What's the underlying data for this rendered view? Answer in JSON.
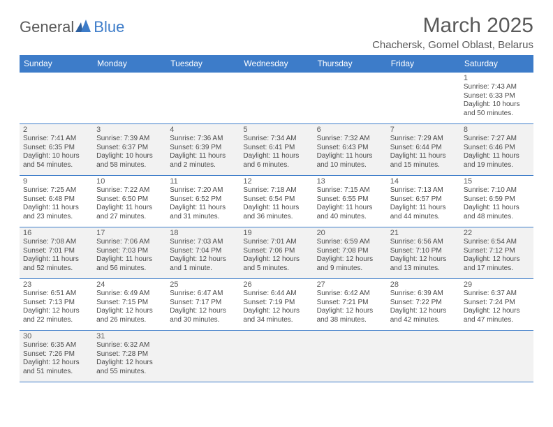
{
  "brand": {
    "part1": "General",
    "part2": "Blue"
  },
  "title": "March 2025",
  "location": "Chachersk, Gomel Oblast, Belarus",
  "colors": {
    "header_bg": "#3d7cc9",
    "header_fg": "#ffffff",
    "text": "#595959",
    "alt_row_bg": "#f2f2f2",
    "border": "#3d7cc9"
  },
  "weekdays": [
    "Sunday",
    "Monday",
    "Tuesday",
    "Wednesday",
    "Thursday",
    "Friday",
    "Saturday"
  ],
  "weeks": [
    [
      {
        "empty": true
      },
      {
        "empty": true
      },
      {
        "empty": true
      },
      {
        "empty": true
      },
      {
        "empty": true
      },
      {
        "empty": true
      },
      {
        "n": "1",
        "sr": "7:43 AM",
        "ss": "6:33 PM",
        "dl": "10 hours and 50 minutes."
      }
    ],
    [
      {
        "n": "2",
        "sr": "7:41 AM",
        "ss": "6:35 PM",
        "dl": "10 hours and 54 minutes."
      },
      {
        "n": "3",
        "sr": "7:39 AM",
        "ss": "6:37 PM",
        "dl": "10 hours and 58 minutes."
      },
      {
        "n": "4",
        "sr": "7:36 AM",
        "ss": "6:39 PM",
        "dl": "11 hours and 2 minutes."
      },
      {
        "n": "5",
        "sr": "7:34 AM",
        "ss": "6:41 PM",
        "dl": "11 hours and 6 minutes."
      },
      {
        "n": "6",
        "sr": "7:32 AM",
        "ss": "6:43 PM",
        "dl": "11 hours and 10 minutes."
      },
      {
        "n": "7",
        "sr": "7:29 AM",
        "ss": "6:44 PM",
        "dl": "11 hours and 15 minutes."
      },
      {
        "n": "8",
        "sr": "7:27 AM",
        "ss": "6:46 PM",
        "dl": "11 hours and 19 minutes."
      }
    ],
    [
      {
        "n": "9",
        "sr": "7:25 AM",
        "ss": "6:48 PM",
        "dl": "11 hours and 23 minutes."
      },
      {
        "n": "10",
        "sr": "7:22 AM",
        "ss": "6:50 PM",
        "dl": "11 hours and 27 minutes."
      },
      {
        "n": "11",
        "sr": "7:20 AM",
        "ss": "6:52 PM",
        "dl": "11 hours and 31 minutes."
      },
      {
        "n": "12",
        "sr": "7:18 AM",
        "ss": "6:54 PM",
        "dl": "11 hours and 36 minutes."
      },
      {
        "n": "13",
        "sr": "7:15 AM",
        "ss": "6:55 PM",
        "dl": "11 hours and 40 minutes."
      },
      {
        "n": "14",
        "sr": "7:13 AM",
        "ss": "6:57 PM",
        "dl": "11 hours and 44 minutes."
      },
      {
        "n": "15",
        "sr": "7:10 AM",
        "ss": "6:59 PM",
        "dl": "11 hours and 48 minutes."
      }
    ],
    [
      {
        "n": "16",
        "sr": "7:08 AM",
        "ss": "7:01 PM",
        "dl": "11 hours and 52 minutes."
      },
      {
        "n": "17",
        "sr": "7:06 AM",
        "ss": "7:03 PM",
        "dl": "11 hours and 56 minutes."
      },
      {
        "n": "18",
        "sr": "7:03 AM",
        "ss": "7:04 PM",
        "dl": "12 hours and 1 minute."
      },
      {
        "n": "19",
        "sr": "7:01 AM",
        "ss": "7:06 PM",
        "dl": "12 hours and 5 minutes."
      },
      {
        "n": "20",
        "sr": "6:59 AM",
        "ss": "7:08 PM",
        "dl": "12 hours and 9 minutes."
      },
      {
        "n": "21",
        "sr": "6:56 AM",
        "ss": "7:10 PM",
        "dl": "12 hours and 13 minutes."
      },
      {
        "n": "22",
        "sr": "6:54 AM",
        "ss": "7:12 PM",
        "dl": "12 hours and 17 minutes."
      }
    ],
    [
      {
        "n": "23",
        "sr": "6:51 AM",
        "ss": "7:13 PM",
        "dl": "12 hours and 22 minutes."
      },
      {
        "n": "24",
        "sr": "6:49 AM",
        "ss": "7:15 PM",
        "dl": "12 hours and 26 minutes."
      },
      {
        "n": "25",
        "sr": "6:47 AM",
        "ss": "7:17 PM",
        "dl": "12 hours and 30 minutes."
      },
      {
        "n": "26",
        "sr": "6:44 AM",
        "ss": "7:19 PM",
        "dl": "12 hours and 34 minutes."
      },
      {
        "n": "27",
        "sr": "6:42 AM",
        "ss": "7:21 PM",
        "dl": "12 hours and 38 minutes."
      },
      {
        "n": "28",
        "sr": "6:39 AM",
        "ss": "7:22 PM",
        "dl": "12 hours and 42 minutes."
      },
      {
        "n": "29",
        "sr": "6:37 AM",
        "ss": "7:24 PM",
        "dl": "12 hours and 47 minutes."
      }
    ],
    [
      {
        "n": "30",
        "sr": "6:35 AM",
        "ss": "7:26 PM",
        "dl": "12 hours and 51 minutes."
      },
      {
        "n": "31",
        "sr": "6:32 AM",
        "ss": "7:28 PM",
        "dl": "12 hours and 55 minutes."
      },
      {
        "empty": true
      },
      {
        "empty": true
      },
      {
        "empty": true
      },
      {
        "empty": true
      },
      {
        "empty": true
      }
    ]
  ],
  "labels": {
    "sunrise": "Sunrise:",
    "sunset": "Sunset:",
    "daylight": "Daylight:"
  }
}
